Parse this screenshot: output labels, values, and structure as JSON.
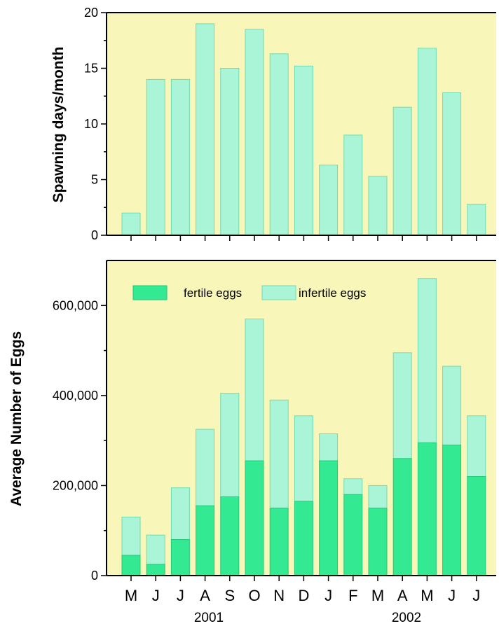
{
  "chart_data": [
    {
      "type": "bar",
      "ylabel": "Spawning days/month",
      "ylim": [
        0,
        20
      ],
      "yticks": [
        "0",
        "5",
        "10",
        "15",
        "20"
      ],
      "categories": [
        "M",
        "J",
        "J",
        "A",
        "S",
        "O",
        "N",
        "D",
        "J",
        "F",
        "M",
        "A",
        "M",
        "J",
        "J"
      ],
      "values": [
        2,
        14,
        14,
        19,
        15,
        18.5,
        16.3,
        15.2,
        6.3,
        9,
        5.3,
        11.5,
        16.8,
        12.8,
        2.8
      ],
      "colors": {
        "bar": "#aaf5d8",
        "background": "#f8f6b8"
      }
    },
    {
      "type": "bar",
      "stacked": true,
      "ylabel": "Average Number of Eggs",
      "ylim": [
        0,
        700000
      ],
      "yticks": [
        "0",
        "200,000",
        "400,000",
        "600,000"
      ],
      "categories": [
        "M",
        "J",
        "J",
        "A",
        "S",
        "O",
        "N",
        "D",
        "J",
        "F",
        "M",
        "A",
        "M",
        "J",
        "J"
      ],
      "years": [
        "2001",
        "2002"
      ],
      "legend": {
        "fertile": "fertile eggs",
        "infertile": "infertile eggs",
        "placement": "top-left"
      },
      "series": [
        {
          "name": "fertile eggs",
          "values": [
            45000,
            25000,
            80000,
            155000,
            175000,
            255000,
            150000,
            165000,
            255000,
            180000,
            150000,
            260000,
            295000,
            290000,
            220000
          ]
        },
        {
          "name": "infertile eggs",
          "values": [
            85000,
            65000,
            115000,
            170000,
            230000,
            315000,
            240000,
            190000,
            60000,
            35000,
            50000,
            235000,
            365000,
            175000,
            135000
          ]
        }
      ],
      "colors": {
        "fertile": "#33ea93",
        "infertile": "#aaf5d8",
        "background": "#f8f6b8"
      }
    }
  ]
}
